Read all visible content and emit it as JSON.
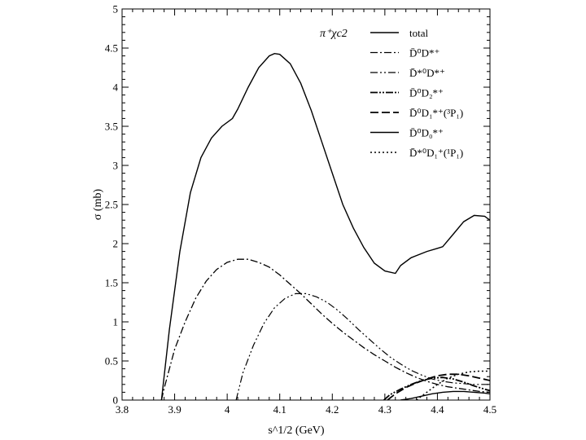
{
  "chart_data": {
    "type": "line",
    "title": "",
    "xlabel": "s^1/2 (GeV)",
    "ylabel": "σ (mb)",
    "xlim": [
      3.8,
      4.5
    ],
    "ylim": [
      0,
      5
    ],
    "xticks": [
      "3.8",
      "3.9",
      "4",
      "4.1",
      "4.2",
      "4.3",
      "4.4",
      "4.5"
    ],
    "yticks": [
      "0",
      "0.5",
      "1",
      "1.5",
      "2",
      "2.5",
      "3",
      "3.5",
      "4",
      "4.5",
      "5"
    ],
    "legend_title": "π⁺χc2",
    "legend_position": "top-right",
    "series": [
      {
        "name": "total",
        "style": "solid",
        "x": [
          3.875,
          3.89,
          3.91,
          3.93,
          3.95,
          3.97,
          3.99,
          4.01,
          4.02,
          4.04,
          4.06,
          4.08,
          4.09,
          4.1,
          4.12,
          4.14,
          4.16,
          4.18,
          4.2,
          4.22,
          4.24,
          4.26,
          4.28,
          4.3,
          4.32,
          4.33,
          4.35,
          4.38,
          4.4,
          4.41,
          4.43,
          4.45,
          4.47,
          4.49,
          4.5
        ],
        "y": [
          0,
          0.9,
          1.9,
          2.65,
          3.1,
          3.35,
          3.5,
          3.6,
          3.72,
          4.0,
          4.25,
          4.4,
          4.43,
          4.42,
          4.3,
          4.05,
          3.7,
          3.3,
          2.9,
          2.5,
          2.2,
          1.95,
          1.75,
          1.65,
          1.62,
          1.72,
          1.82,
          1.9,
          1.94,
          1.96,
          2.12,
          2.28,
          2.36,
          2.35,
          2.3
        ]
      },
      {
        "name": "D̄⁰D*⁺",
        "style": "dashdot",
        "x": [
          3.875,
          3.88,
          3.9,
          3.92,
          3.94,
          3.96,
          3.98,
          4.0,
          4.02,
          4.04,
          4.06,
          4.08,
          4.1,
          4.12,
          4.14,
          4.16,
          4.18,
          4.2,
          4.22,
          4.24,
          4.26,
          4.28,
          4.3,
          4.32,
          4.34,
          4.36,
          4.38,
          4.4,
          4.42,
          4.44,
          4.46,
          4.48,
          4.5
        ],
        "y": [
          0,
          0.15,
          0.65,
          1.0,
          1.3,
          1.52,
          1.67,
          1.76,
          1.8,
          1.8,
          1.76,
          1.7,
          1.6,
          1.48,
          1.36,
          1.23,
          1.1,
          0.98,
          0.87,
          0.77,
          0.67,
          0.58,
          0.5,
          0.42,
          0.35,
          0.29,
          0.24,
          0.2,
          0.17,
          0.15,
          0.13,
          0.11,
          0.1
        ]
      },
      {
        "name": "D̄*⁰D*⁺",
        "style": "dashdotdot",
        "x": [
          4.017,
          4.03,
          4.05,
          4.07,
          4.09,
          4.11,
          4.13,
          4.15,
          4.17,
          4.19,
          4.21,
          4.23,
          4.25,
          4.27,
          4.29,
          4.31,
          4.33,
          4.35,
          4.37,
          4.39,
          4.41,
          4.43,
          4.45,
          4.47,
          4.5
        ],
        "y": [
          0,
          0.35,
          0.7,
          0.98,
          1.18,
          1.3,
          1.36,
          1.36,
          1.32,
          1.25,
          1.15,
          1.03,
          0.9,
          0.78,
          0.66,
          0.55,
          0.46,
          0.38,
          0.32,
          0.27,
          0.24,
          0.22,
          0.21,
          0.2,
          0.2
        ]
      },
      {
        "name": "D̄⁰D₂*⁺",
        "style": "dashdotdot-long",
        "x": [
          4.298,
          4.31,
          4.33,
          4.35,
          4.37,
          4.39,
          4.41,
          4.43,
          4.45,
          4.47,
          4.49,
          4.5
        ],
        "y": [
          0,
          0.07,
          0.14,
          0.2,
          0.25,
          0.28,
          0.29,
          0.27,
          0.23,
          0.18,
          0.14,
          0.12
        ]
      },
      {
        "name": "D̄⁰D₁*⁺(³P₁)",
        "style": "dashed",
        "x": [
          4.305,
          4.32,
          4.34,
          4.36,
          4.38,
          4.4,
          4.42,
          4.44,
          4.46,
          4.48,
          4.5
        ],
        "y": [
          0,
          0.08,
          0.16,
          0.22,
          0.27,
          0.31,
          0.33,
          0.33,
          0.31,
          0.28,
          0.25
        ]
      },
      {
        "name": "D̄⁰D₀*⁺",
        "style": "solid",
        "x": [
          4.33,
          4.35,
          4.37,
          4.39,
          4.41,
          4.43,
          4.45,
          4.47,
          4.49,
          4.5
        ],
        "y": [
          0,
          0.02,
          0.05,
          0.08,
          0.1,
          0.11,
          0.11,
          0.1,
          0.09,
          0.08
        ]
      },
      {
        "name": "D̄*⁰D₁⁺(¹P₁)",
        "style": "dotted",
        "x": [
          4.36,
          4.38,
          4.4,
          4.42,
          4.44,
          4.46,
          4.48,
          4.5
        ],
        "y": [
          0,
          0.1,
          0.2,
          0.28,
          0.33,
          0.36,
          0.37,
          0.37
        ]
      }
    ]
  }
}
